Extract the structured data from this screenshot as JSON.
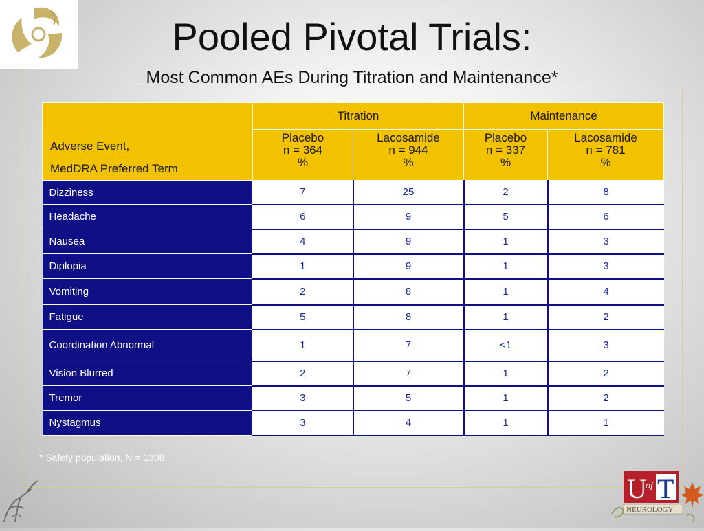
{
  "title": "Pooled Pivotal Trials:",
  "subtitle": "Most Common AEs During Titration and Maintenance*",
  "table": {
    "ae_header_line1": "Adverse Event,",
    "ae_header_line2": "MedDRA Preferred Term",
    "groups": [
      "Titration",
      "Maintenance"
    ],
    "subheaders": [
      {
        "name": "Placebo",
        "n": "n = 364",
        "unit": "%"
      },
      {
        "name": "Lacosamide",
        "n": "n = 944",
        "unit": "%"
      },
      {
        "name": "Placebo",
        "n": "n = 337",
        "unit": "%"
      },
      {
        "name": "Lacosamide",
        "n": "n = 781",
        "unit": "%"
      }
    ],
    "rows": [
      {
        "term": "Dizziness",
        "values": [
          "7",
          "25",
          "2",
          "8"
        ]
      },
      {
        "term": "Headache",
        "values": [
          "6",
          "9",
          "5",
          "6"
        ]
      },
      {
        "term": "Nausea",
        "values": [
          "4",
          "9",
          "1",
          "3"
        ]
      },
      {
        "term": "Diplopia",
        "values": [
          "1",
          "9",
          "1",
          "3"
        ]
      },
      {
        "term": "Vomiting",
        "values": [
          "2",
          "8",
          "1",
          "4"
        ]
      },
      {
        "term": "Fatigue",
        "values": [
          "5",
          "8",
          "1",
          "2"
        ]
      },
      {
        "term": "Coordination Abnormal",
        "values": [
          "1",
          "7",
          "<1",
          "3"
        ]
      },
      {
        "term": "Vision Blurred",
        "values": [
          "2",
          "7",
          "1",
          "2"
        ]
      },
      {
        "term": "Tremor",
        "values": [
          "3",
          "5",
          "1",
          "2"
        ]
      },
      {
        "term": "Nystagmus",
        "values": [
          "3",
          "4",
          "1",
          "1"
        ]
      }
    ]
  },
  "footnote": "* Safety population, N = 1308.",
  "logo_text": {
    "u": "U",
    "of": "of",
    "t": "T",
    "dept": "NEUROLOGY"
  },
  "colors": {
    "header_gold": "#f2c200",
    "term_navy": "#0f0f86",
    "value_text": "#1a2a9a",
    "logo_red": "#b5202a"
  }
}
